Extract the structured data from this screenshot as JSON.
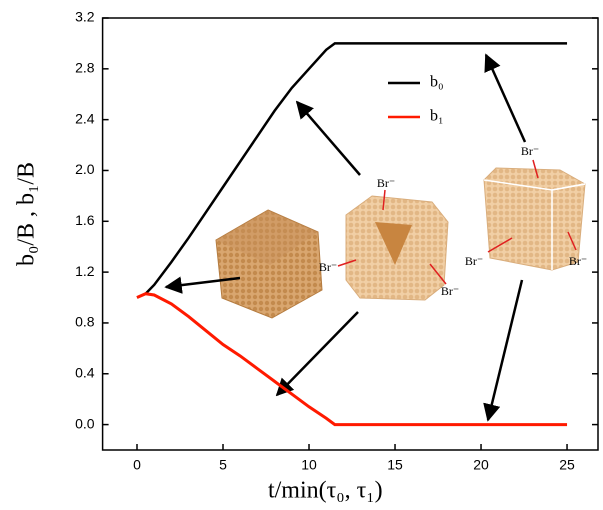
{
  "chart_data": {
    "type": "line",
    "xlabel": "t/min(τ₀, τ₁)",
    "ylabel": "b₀/B , b₁/B",
    "x": [
      0,
      0.5,
      1,
      2,
      3,
      4,
      5,
      6,
      7,
      8,
      9,
      10,
      11,
      11.5,
      25
    ],
    "series": [
      {
        "name": "b₀",
        "color": "#000000",
        "values": [
          1.0,
          1.03,
          1.1,
          1.28,
          1.47,
          1.67,
          1.87,
          2.07,
          2.27,
          2.47,
          2.65,
          2.8,
          2.95,
          3.0,
          3.0
        ]
      },
      {
        "name": "b₁",
        "color": "#ff1a00",
        "values": [
          1.0,
          1.03,
          1.02,
          0.95,
          0.85,
          0.74,
          0.63,
          0.54,
          0.44,
          0.34,
          0.24,
          0.14,
          0.05,
          0.0,
          0.0
        ]
      }
    ],
    "xlim": [
      -2,
      26.8
    ],
    "ylim": [
      -0.2,
      3.2
    ],
    "xticks": [
      0,
      5,
      10,
      15,
      20,
      25
    ],
    "yticks": [
      {
        "value": 0,
        "label": "0.0"
      },
      0.4,
      0.8,
      1.2,
      1.6,
      {
        "value": 2,
        "label": "2.0"
      },
      2.4,
      2.8,
      3.2
    ],
    "annotations": [
      "Br⁻",
      "Br⁻",
      "Br⁻",
      "Br⁻",
      "Br⁻",
      "Br⁻"
    ]
  }
}
